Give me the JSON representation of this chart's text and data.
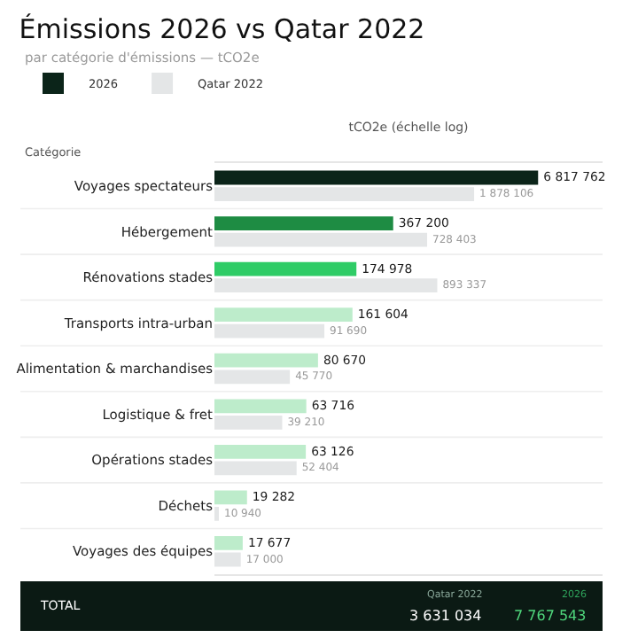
{
  "chart_data": {
    "type": "bar",
    "orientation": "horizontal",
    "log": "x",
    "title": "Émissions 2026 vs Qatar 2022",
    "subtitle": "par catégorie d'émissions — tCO2e",
    "ylabel": "Catégorie",
    "xlabel": "tCO2e (échelle log)",
    "categories": [
      "Voyages spectateurs",
      "Hébergement",
      "Rénovations stades",
      "Transports intra-urban",
      "Alimentation & marchandises",
      "Logistique & fret",
      "Opérations stades",
      "Déchets",
      "Voyages des équipes"
    ],
    "series": [
      {
        "name": "2026",
        "colors": [
          "#0b2419",
          "#1e8c43",
          "#2fcc66",
          "#bdeccb",
          "#bdeccb",
          "#bdeccb",
          "#bdeccb",
          "#bdeccb",
          "#bdeccb"
        ],
        "values": [
          6817762,
          367200,
          174978,
          161604,
          80670,
          63716,
          63126,
          19282,
          17677
        ],
        "value_labels": [
          "6 817 762",
          "367 200",
          "174 978",
          "161 604",
          "80 670",
          "63 716",
          "63 126",
          "19 282",
          "17 677"
        ]
      },
      {
        "name": "Qatar 2022",
        "color": "#e4e6e7",
        "values": [
          1878106,
          728403,
          893337,
          91690,
          45770,
          39210,
          52404,
          10940,
          17000
        ],
        "value_labels": [
          "1 878 106",
          "728 403",
          "893 337",
          "91 690",
          "45 770",
          "39 210",
          "52 404",
          "10 940",
          "17 000"
        ]
      }
    ],
    "xlim": [
      10000,
      25000000
    ],
    "legend": "top left",
    "grid": false,
    "tick_labels": "y",
    "annotations": [
      "TOTAL",
      "Qatar 2022",
      "3 631 034",
      "2026",
      "7 767 543"
    ]
  }
}
